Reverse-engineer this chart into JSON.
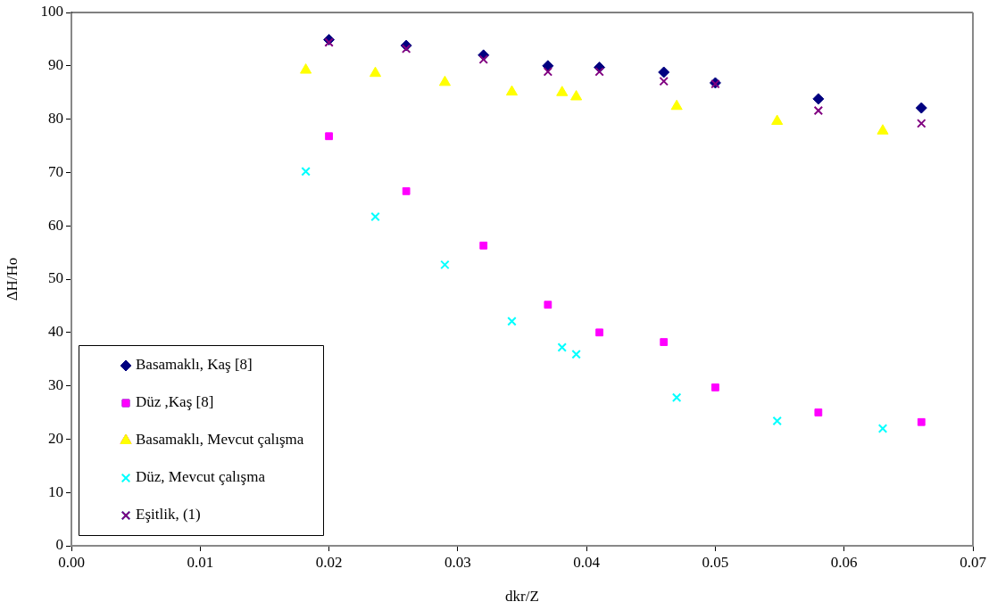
{
  "chart_data": {
    "type": "scatter",
    "xlabel": "dkr/Z",
    "ylabel": "ΔH/Ho",
    "xlim": [
      0,
      0.07
    ],
    "xticks": [
      {
        "value": 0,
        "label": "0.00"
      },
      {
        "value": 0.01,
        "label": "0.01"
      },
      {
        "value": 0.02,
        "label": "0.02"
      },
      {
        "value": 0.03,
        "label": "0.03"
      },
      {
        "value": 0.04,
        "label": "0.04"
      },
      {
        "value": 0.05,
        "label": "0.05"
      },
      {
        "value": 0.06,
        "label": "0.06"
      },
      {
        "value": 0.07,
        "label": "0.07"
      }
    ],
    "ylim": [
      0,
      100
    ],
    "yticks": [
      0,
      10,
      20,
      30,
      40,
      50,
      60,
      70,
      80,
      90,
      100
    ],
    "grid": false,
    "legend": "bottom left",
    "series": [
      {
        "name": "Basamaklı, Kaş [8]",
        "color": "#000080",
        "marker": "diamond",
        "x": [
          0.02,
          0.026,
          0.032,
          0.037,
          0.041,
          0.046,
          0.05,
          0.058,
          0.066
        ],
        "values": [
          94.9,
          93.8,
          92.0,
          90.0,
          89.7,
          88.8,
          86.8,
          83.8,
          82.1
        ]
      },
      {
        "name": "Düz ,Kaş [8]",
        "color": "#ff00ff",
        "marker": "square",
        "x": [
          0.02,
          0.026,
          0.032,
          0.037,
          0.041,
          0.046,
          0.05,
          0.058,
          0.066
        ],
        "values": [
          76.8,
          66.5,
          56.3,
          45.2,
          40.0,
          38.2,
          29.7,
          25.0,
          23.2
        ]
      },
      {
        "name": "Basamaklı, Mevcut çalışma",
        "color": "#ffff00",
        "marker": "triangle",
        "x": [
          0.0182,
          0.0236,
          0.029,
          0.0342,
          0.0381,
          0.0392,
          0.047,
          0.0548,
          0.063
        ],
        "values": [
          89.2,
          88.6,
          86.9,
          85.1,
          85.0,
          84.2,
          82.4,
          79.6,
          77.8
        ]
      },
      {
        "name": "Düz, Mevcut çalışma",
        "color": "#00ffff",
        "marker": "cross",
        "x": [
          0.0182,
          0.0236,
          0.029,
          0.0342,
          0.0381,
          0.0392,
          0.047,
          0.0548,
          0.063
        ],
        "values": [
          70.2,
          61.7,
          52.7,
          42.1,
          37.2,
          35.9,
          27.8,
          23.4,
          22.0
        ]
      },
      {
        "name": "Eşitlik, (1)",
        "color": "#800080",
        "marker": "cross",
        "x": [
          0.02,
          0.026,
          0.032,
          0.037,
          0.041,
          0.046,
          0.05,
          0.058,
          0.066
        ],
        "values": [
          94.4,
          93.2,
          91.2,
          88.9,
          88.9,
          87.1,
          86.6,
          81.6,
          79.2
        ]
      }
    ]
  }
}
